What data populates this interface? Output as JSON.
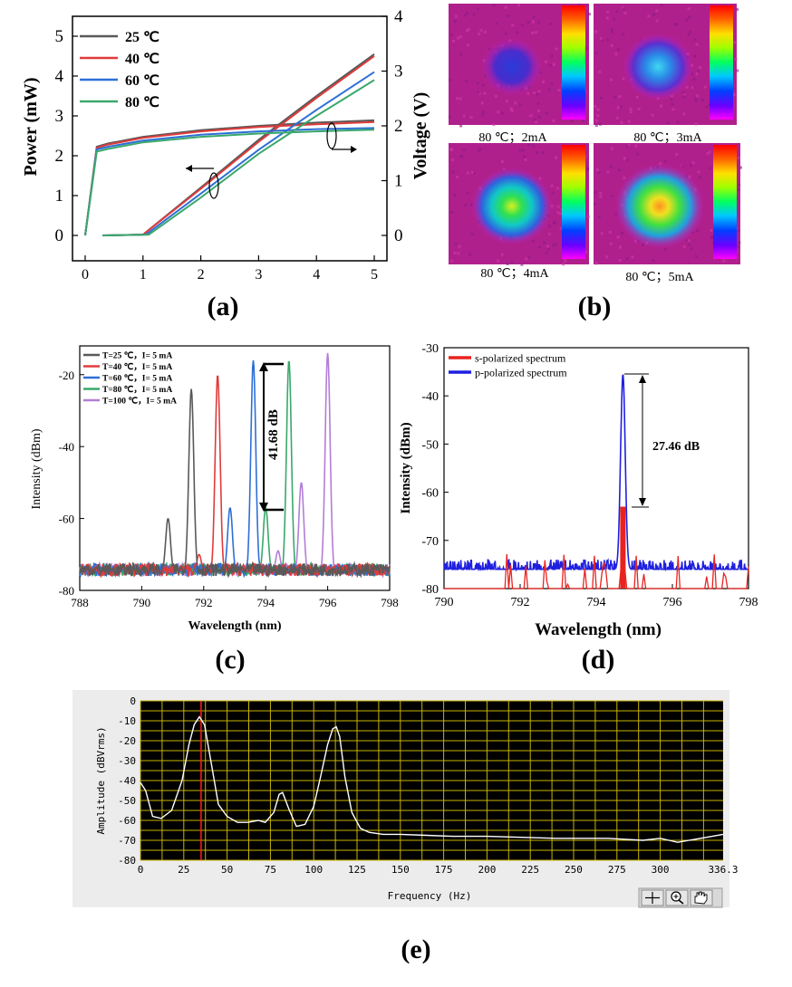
{
  "chart_data": [
    {
      "panel": "(a)",
      "type": "line",
      "ylabel": "Power (mW)",
      "ylabel_right": "Voltage (V)",
      "xlim": [
        0,
        5
      ],
      "ylim": [
        0,
        5.5
      ],
      "ylim_right": [
        0,
        4
      ],
      "x_ticks": [
        "0",
        "1",
        "2",
        "3",
        "4",
        "5"
      ],
      "y_ticks": [
        "0",
        "1",
        "2",
        "3",
        "4",
        "5"
      ],
      "y_ticks_right": [
        "0",
        "1",
        "2",
        "3",
        "4"
      ],
      "legend_position": "top-left",
      "series": [
        {
          "name": "25 ℃",
          "color": "#595959",
          "power": {
            "x": [
              0.3,
              1.0,
              2.0,
              3.0,
              4.0,
              5.0
            ],
            "y": [
              0,
              0.02,
              1.2,
              2.4,
              3.5,
              4.55
            ]
          },
          "voltage": {
            "x": [
              0,
              0.2,
              0.4,
              1,
              2,
              3,
              4,
              5
            ],
            "y": [
              0,
              1.62,
              1.68,
              1.8,
              1.92,
              2.0,
              2.06,
              2.1
            ]
          }
        },
        {
          "name": "40 ℃",
          "color": "#e03b3b",
          "power": {
            "x": [
              0.3,
              1.0,
              2.0,
              3.0,
              4.0,
              5.0
            ],
            "y": [
              0,
              0.02,
              1.17,
              2.35,
              3.45,
              4.5
            ]
          },
          "voltage": {
            "x": [
              0,
              0.2,
              0.4,
              1,
              2,
              3,
              4,
              5
            ],
            "y": [
              0,
              1.6,
              1.66,
              1.78,
              1.9,
              1.98,
              2.03,
              2.07
            ]
          }
        },
        {
          "name": "60 ℃",
          "color": "#2e6fd6",
          "power": {
            "x": [
              0.3,
              1.05,
              2.0,
              3.0,
              4.0,
              5.0
            ],
            "y": [
              0,
              0.02,
              1.05,
              2.15,
              3.15,
              4.1
            ]
          },
          "voltage": {
            "x": [
              0,
              0.2,
              0.4,
              1,
              2,
              3,
              4,
              5
            ],
            "y": [
              0,
              1.57,
              1.62,
              1.73,
              1.84,
              1.9,
              1.94,
              1.96
            ]
          }
        },
        {
          "name": "80 ℃",
          "color": "#3aa86b",
          "power": {
            "x": [
              0.3,
              1.1,
              2.0,
              3.0,
              4.0,
              5.0
            ],
            "y": [
              0,
              0.02,
              0.95,
              2.05,
              3.0,
              3.9
            ]
          },
          "voltage": {
            "x": [
              0,
              0.2,
              0.4,
              1,
              2,
              3,
              4,
              5
            ],
            "y": [
              0,
              1.53,
              1.58,
              1.7,
              1.8,
              1.86,
              1.9,
              1.93
            ]
          }
        }
      ]
    },
    {
      "panel": "(b)",
      "type": "heatmap",
      "images": [
        {
          "label": "80 ℃；2mA",
          "level": 0.1
        },
        {
          "label": "80 ℃；3mA",
          "level": 0.35
        },
        {
          "label": "80 ℃；4mA",
          "level": 0.62
        },
        {
          "label": "80 ℃；5mA",
          "level": 0.85
        }
      ]
    },
    {
      "panel": "(c)",
      "type": "line",
      "xlabel": "Wavelength (nm)",
      "ylabel": "Intensity (dBm)",
      "xlim": [
        788,
        798
      ],
      "ylim": [
        -80,
        -12
      ],
      "x_ticks": [
        "788",
        "790",
        "792",
        "794",
        "796",
        "798"
      ],
      "y_ticks": [
        "-80",
        "-60",
        "-40",
        "-20"
      ],
      "annotation": "41.68 dB",
      "annotation_range": [
        -57,
        -16
      ],
      "legend_position": "top-left",
      "series": [
        {
          "name": "T=25 ℃，I= 5 mA",
          "color": "#595959",
          "peaks": [
            [
              790.85,
              -60
            ],
            [
              791.6,
              -24
            ]
          ]
        },
        {
          "name": "T=40 ℃，I= 5 mA",
          "color": "#e03b3b",
          "peaks": [
            [
              791.85,
              -70
            ],
            [
              792.45,
              -20
            ]
          ]
        },
        {
          "name": "T=60 ℃，I= 5 mA",
          "color": "#2e6fd6",
          "peaks": [
            [
              792.85,
              -57
            ],
            [
              793.6,
              -16
            ]
          ]
        },
        {
          "name": "T=80 ℃，I= 5 mA",
          "color": "#3aa86b",
          "peaks": [
            [
              794.0,
              -57
            ],
            [
              794.75,
              -16
            ]
          ]
        },
        {
          "name": "T=100 ℃，I= 5 mA",
          "color": "#b27ed8",
          "peaks": [
            [
              794.4,
              -69
            ],
            [
              795.15,
              -50
            ],
            [
              796.0,
              -14
            ]
          ]
        }
      ]
    },
    {
      "panel": "(d)",
      "type": "line",
      "xlabel": "Wavelength (nm)",
      "ylabel": "Intensity (dBm)",
      "xlim": [
        790,
        798
      ],
      "ylim": [
        -80,
        -30
      ],
      "x_ticks": [
        "790",
        "792",
        "794",
        "796",
        "798"
      ],
      "y_ticks": [
        "-80",
        "-70",
        "-60",
        "-50",
        "-40",
        "-30"
      ],
      "annotation": "27.46 dB",
      "annotation_range": [
        -63,
        -35.5
      ],
      "legend_position": "top-left",
      "series": [
        {
          "name": "s-polarized spectrum",
          "color": "#e8231f",
          "peak": [
            794.7,
            -63
          ]
        },
        {
          "name": "p-polarized spectrum",
          "color": "#1f1fe0",
          "peak": [
            794.7,
            -35.5
          ]
        }
      ]
    },
    {
      "panel": "(e)",
      "type": "line",
      "xlabel": "Frequency (Hz)",
      "ylabel": "Amplitude (dBVrms)",
      "xlim": [
        0,
        336.3
      ],
      "ylim": [
        -80,
        0
      ],
      "x_ticks": [
        "0",
        "25",
        "50",
        "75",
        "100",
        "125",
        "150",
        "175",
        "200",
        "225",
        "250",
        "275",
        "300",
        "336.3"
      ],
      "y_ticks": [
        "0",
        "-10",
        "-20",
        "-30",
        "-40",
        "-50",
        "-60",
        "-70",
        "-80"
      ],
      "cursor_x": 35,
      "grid": true,
      "series": [
        {
          "color": "#ffffff",
          "x": [
            0,
            3,
            7,
            12,
            18,
            24,
            28,
            31,
            34,
            37,
            41,
            45,
            50,
            56,
            62,
            68,
            72,
            77,
            80,
            82,
            86,
            90,
            95,
            100,
            104,
            108,
            111,
            113,
            115,
            118,
            122,
            127,
            132,
            140,
            150,
            165,
            180,
            200,
            220,
            240,
            260,
            270,
            280,
            290,
            300,
            305,
            310,
            320,
            330,
            336.3
          ],
          "y": [
            -41,
            -45,
            -58,
            -59,
            -55,
            -40,
            -22,
            -12,
            -8,
            -12,
            -32,
            -52,
            -58,
            -61,
            -61,
            -60,
            -61,
            -56,
            -47,
            -46,
            -55,
            -63,
            -62,
            -53,
            -38,
            -22,
            -14,
            -13,
            -18,
            -38,
            -56,
            -64,
            -66,
            -67,
            -67,
            -67.5,
            -68,
            -68,
            -68.5,
            -69,
            -69,
            -69,
            -69.5,
            -70,
            -69,
            -70,
            -71,
            -69.5,
            -68,
            -67
          ]
        }
      ]
    }
  ],
  "panel_labels": [
    "(a)",
    "(b)",
    "(c)",
    "(d)",
    "(e)"
  ]
}
